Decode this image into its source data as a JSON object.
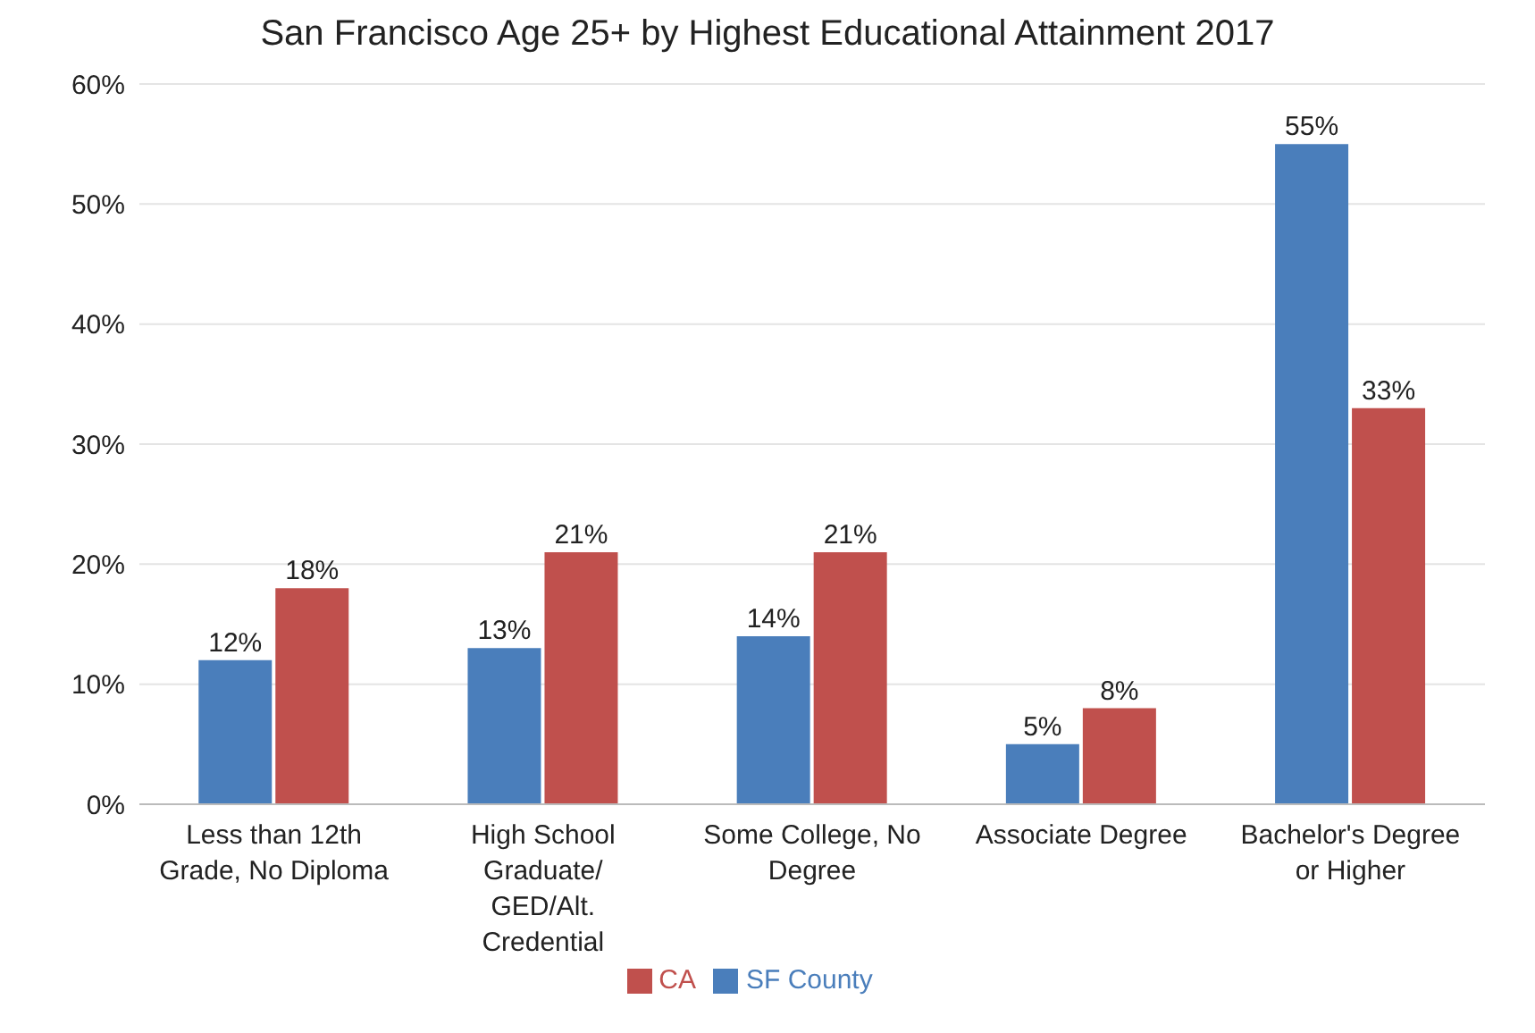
{
  "chart_data": {
    "type": "bar",
    "title": "San Francisco Age 25+ by Highest Educational Attainment 2017",
    "categories": [
      "Less than 12th Grade, No Diploma",
      "High School Graduate/ GED/Alt. Credential",
      "Some College, No Degree",
      "Associate Degree",
      "Bachelor's Degree or Higher"
    ],
    "series": [
      {
        "name": "SF County",
        "color": "#4a7ebb",
        "values": [
          12,
          13,
          14,
          5,
          55
        ],
        "value_labels": [
          "12%",
          "13%",
          "14%",
          "5%",
          "55%"
        ]
      },
      {
        "name": "CA",
        "color": "#c0504d",
        "values": [
          18,
          21,
          21,
          8,
          33
        ],
        "value_labels": [
          "18%",
          "21%",
          "21%",
          "8%",
          "33%"
        ]
      }
    ],
    "ylim": [
      0,
      60
    ],
    "yticks": [
      {
        "value": 0,
        "label": "0%"
      },
      {
        "value": 10,
        "label": "10%"
      },
      {
        "value": 20,
        "label": "20%"
      },
      {
        "value": 30,
        "label": "30%"
      },
      {
        "value": 40,
        "label": "40%"
      },
      {
        "value": 50,
        "label": "50%"
      },
      {
        "value": 60,
        "label": "60%"
      }
    ],
    "grid": "y",
    "legend": "bottom"
  }
}
